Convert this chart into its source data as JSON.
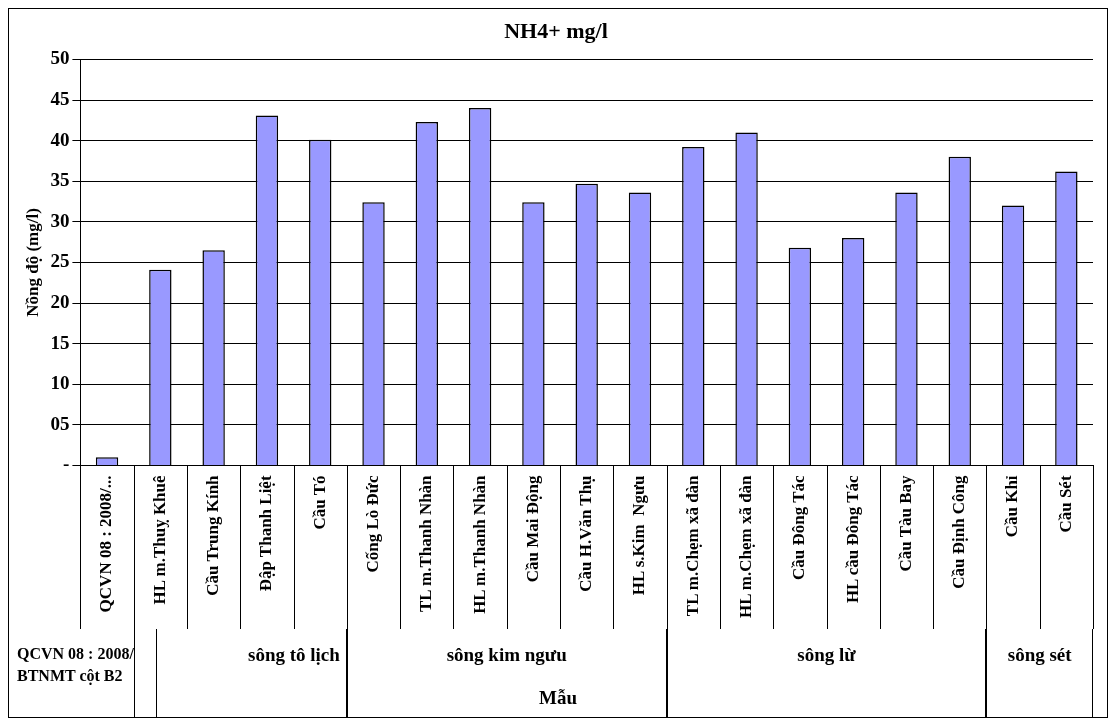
{
  "chart_data": {
    "type": "bar",
    "title": "NH4+ mg/l",
    "ylabel": "Nồng độ (mg/l)",
    "xlabel": "Mẫu",
    "categories": [
      "QCVN 08 : 2008/...",
      "HL m.Thuỵ Khuê",
      "Cầu Trung Kính",
      "Đập Thanh Liệt",
      "Cầu Tó",
      "Cống Lò Đức",
      "TL m.Thanh Nhàn",
      "HL m.Thanh Nhàn",
      "Cầu Mai Động",
      "Cầu H.Văn Thụ",
      "HL s.Kim  Ngưu",
      "TL m.Chẹm xã đàn",
      "HL m.Chẹm xã đàn",
      "Cầu Đông Tác",
      "HL cầu Đông Tác",
      "Cầu Tàu Bay",
      "Cầu Định Công",
      "Cầu Khỉ",
      "Cầu Sét"
    ],
    "values": [
      1,
      24.1,
      26.5,
      43.1,
      40.1,
      32.4,
      42.3,
      44,
      32.4,
      34.7,
      33.6,
      39.2,
      41,
      26.8,
      28,
      33.6,
      38,
      32,
      36.2
    ],
    "color": "#9999ff",
    "ylim": [
      0,
      50
    ],
    "yticks": [
      {
        "value": 0,
        "label": "-"
      },
      {
        "value": 5,
        "label": "05"
      },
      10,
      15,
      20,
      25,
      30,
      35,
      40,
      45,
      50
    ],
    "grid": "y",
    "legend": false,
    "annotations": [
      "QCVN 08 : 2008/ BTNMT  cột B2",
      "sông tô lịch",
      "sông kim ngưu",
      "sông lừ",
      "sông sét"
    ]
  }
}
